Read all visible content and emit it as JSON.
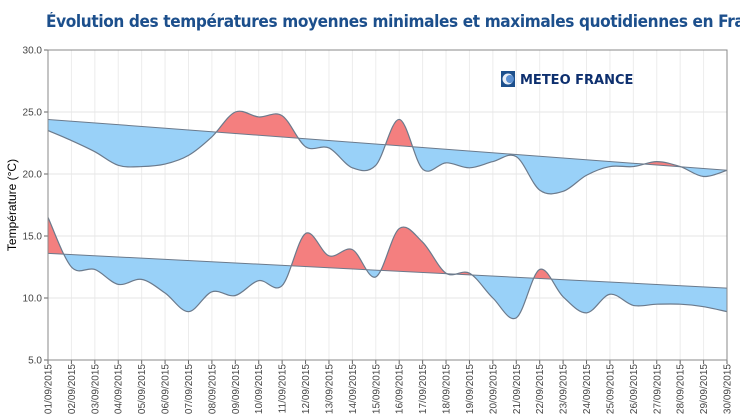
{
  "chart_data": {
    "type": "area",
    "title": "Évolution des températures moyennes minimales et maximales quotidiennes en France",
    "ylabel": "Température (°C)",
    "xlabel": "",
    "ylim": [
      5,
      30
    ],
    "yticks": [
      "5.0",
      "10.0",
      "15.0",
      "20.0",
      "25.0",
      "30.0"
    ],
    "grid": true,
    "legend": "none",
    "colors": {
      "above_normal": "#f47f7f",
      "below_normal": "#99d1f8",
      "line": "#6b7a8c",
      "title": "#1c4f8c"
    },
    "categories": [
      "01/09/2015",
      "02/09/2015",
      "03/09/2015",
      "04/09/2015",
      "05/09/2015",
      "06/09/2015",
      "07/09/2015",
      "08/09/2015",
      "09/09/2015",
      "10/09/2015",
      "11/09/2015",
      "12/09/2015",
      "13/09/2015",
      "14/09/2015",
      "15/09/2015",
      "16/09/2015",
      "17/09/2015",
      "18/09/2015",
      "19/09/2015",
      "20/09/2015",
      "21/09/2015",
      "22/09/2015",
      "23/09/2015",
      "24/09/2015",
      "25/09/2015",
      "26/09/2015",
      "27/09/2015",
      "28/09/2015",
      "29/09/2015",
      "30/09/2015"
    ],
    "series": [
      {
        "values": [
          23.5,
          22.7,
          21.8,
          20.7,
          20.6,
          20.8,
          21.5,
          23.0,
          25.0,
          24.6,
          24.7,
          22.2,
          22.1,
          20.5,
          20.7,
          24.4,
          20.4,
          20.9,
          20.5,
          21.0,
          21.4,
          18.7,
          18.6,
          19.9,
          20.6,
          20.6,
          21.0,
          20.6,
          19.8,
          20.3
        ],
        "normal": [
          24.4,
          20.3
        ]
      },
      {
        "values": [
          16.5,
          12.5,
          12.3,
          11.1,
          11.5,
          10.4,
          8.9,
          10.5,
          10.2,
          11.4,
          11.0,
          15.2,
          13.4,
          13.9,
          11.7,
          15.6,
          14.5,
          12.0,
          12.0,
          10.0,
          8.4,
          12.3,
          10.1,
          8.8,
          10.3,
          9.4,
          9.5,
          9.5,
          9.3,
          8.9
        ],
        "normal": [
          13.6,
          10.8
        ]
      }
    ]
  },
  "logo": {
    "text": "METEO FRANCE"
  }
}
